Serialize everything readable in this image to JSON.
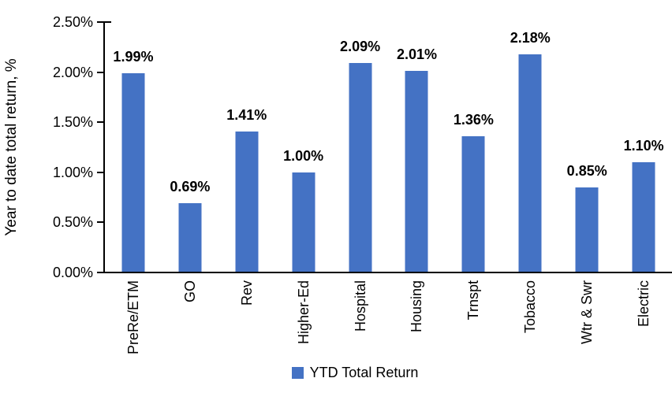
{
  "chart_data": {
    "type": "bar",
    "title": "",
    "categories": [
      "PreRe/ETM",
      "GO",
      "Rev",
      "Higher-Ed",
      "Hospital",
      "Housing",
      "Trnspt",
      "Tobacco",
      "Wtr & Swr",
      "Electric"
    ],
    "values": [
      1.99,
      0.69,
      1.41,
      1.0,
      2.09,
      2.01,
      1.36,
      2.18,
      0.85,
      1.1
    ],
    "data_labels": [
      "1.99%",
      "0.69%",
      "1.41%",
      "1.00%",
      "2.09%",
      "2.01%",
      "1.36%",
      "2.18%",
      "0.85%",
      "1.10%"
    ],
    "xlabel": "",
    "ylabel": "Year to date total return, %",
    "ylim": [
      0,
      2.5
    ],
    "ytick_labels": [
      "0.00%",
      "0.50%",
      "1.00%",
      "1.50%",
      "2.00%",
      "2.50%"
    ],
    "grid": false,
    "legend_position": "bottom-center",
    "legend": [
      {
        "label": "YTD Total Return",
        "color": "#4472C4"
      }
    ],
    "bar_color": "#4472C4",
    "axis_color": "#000000",
    "text_color": "#000000"
  }
}
